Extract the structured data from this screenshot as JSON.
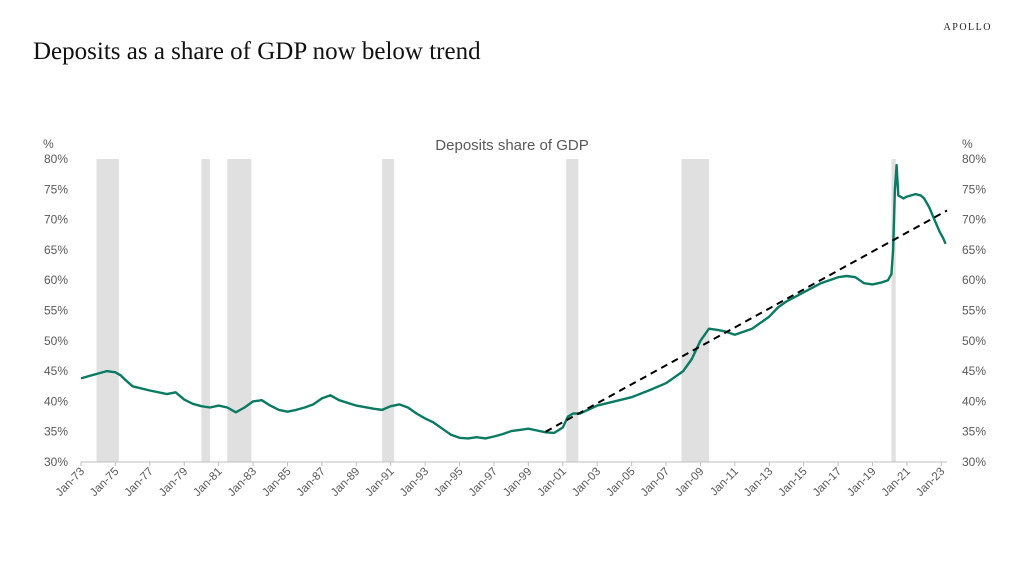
{
  "brand": "APOLLO",
  "page_title": "Deposits as a share of GDP now below trend",
  "chart_data": {
    "type": "line",
    "title": "Deposits share of GDP",
    "y_unit_left": "%",
    "y_unit_right": "%",
    "ylim": [
      30,
      80
    ],
    "y_ticks": [
      "30%",
      "35%",
      "40%",
      "45%",
      "50%",
      "55%",
      "60%",
      "65%",
      "70%",
      "75%",
      "80%"
    ],
    "y_tick_values": [
      30,
      35,
      40,
      45,
      50,
      55,
      60,
      65,
      70,
      75,
      80
    ],
    "xlim": [
      1973.0,
      2023.33
    ],
    "x_ticks": [
      "Jan-73",
      "Jan-75",
      "Jan-77",
      "Jan-79",
      "Jan-81",
      "Jan-83",
      "Jan-85",
      "Jan-87",
      "Jan-89",
      "Jan-91",
      "Jan-93",
      "Jan-95",
      "Jan-97",
      "Jan-99",
      "Jan-01",
      "Jan-03",
      "Jan-05",
      "Jan-07",
      "Jan-09",
      "Jan-11",
      "Jan-13",
      "Jan-15",
      "Jan-17",
      "Jan-19",
      "Jan-21",
      "Jan-23"
    ],
    "x_tick_values": [
      1973,
      1975,
      1977,
      1979,
      1981,
      1983,
      1985,
      1987,
      1989,
      1991,
      1993,
      1995,
      1997,
      1999,
      2001,
      2003,
      2005,
      2007,
      2009,
      2011,
      2013,
      2015,
      2017,
      2019,
      2021,
      2023
    ],
    "recessions": [
      [
        1973.9,
        1975.2
      ],
      [
        1980.0,
        1980.5
      ],
      [
        1981.5,
        1982.9
      ],
      [
        1990.5,
        1991.2
      ],
      [
        2001.2,
        2001.9
      ],
      [
        2007.9,
        2009.5
      ],
      [
        2020.1,
        2020.35
      ]
    ],
    "series": [
      {
        "color": "#0a7a63",
        "x": [
          1973.0,
          1973.5,
          1974.0,
          1974.5,
          1975.0,
          1975.3,
          1975.6,
          1976.0,
          1977.0,
          1978.0,
          1978.5,
          1979.0,
          1979.5,
          1980.0,
          1980.5,
          1981.0,
          1981.5,
          1982.0,
          1982.5,
          1983.0,
          1983.5,
          1984.0,
          1984.5,
          1985.0,
          1985.5,
          1986.0,
          1986.5,
          1987.0,
          1987.5,
          1988.0,
          1989.0,
          1990.0,
          1990.5,
          1991.0,
          1991.5,
          1992.0,
          1992.5,
          1993.0,
          1993.5,
          1994.0,
          1994.5,
          1995.0,
          1995.5,
          1996.0,
          1996.5,
          1997.0,
          1997.5,
          1998.0,
          1998.5,
          1999.0,
          1999.5,
          2000.0,
          2000.5,
          2001.0,
          2001.3,
          2001.6,
          2002.0,
          2003.0,
          2004.0,
          2005.0,
          2006.0,
          2007.0,
          2007.5,
          2008.0,
          2008.5,
          2009.0,
          2009.5,
          2010.0,
          2010.5,
          2011.0,
          2012.0,
          2013.0,
          2013.5,
          2014.0,
          2015.0,
          2016.0,
          2017.0,
          2017.5,
          2018.0,
          2018.5,
          2019.0,
          2019.5,
          2019.9,
          2020.1,
          2020.2,
          2020.3,
          2020.4,
          2020.5,
          2020.8,
          2021.0,
          2021.5,
          2021.8,
          2022.0,
          2022.3,
          2022.6,
          2022.9,
          2023.1,
          2023.25
        ],
        "y": [
          43.8,
          44.2,
          44.6,
          45.0,
          44.8,
          44.3,
          43.5,
          42.5,
          41.8,
          41.2,
          41.5,
          40.3,
          39.6,
          39.2,
          39.0,
          39.3,
          39.0,
          38.2,
          39.0,
          40.0,
          40.2,
          39.3,
          38.6,
          38.3,
          38.6,
          39.0,
          39.5,
          40.5,
          41.0,
          40.2,
          39.3,
          38.8,
          38.6,
          39.2,
          39.5,
          39.0,
          38.0,
          37.2,
          36.5,
          35.5,
          34.5,
          34.0,
          33.9,
          34.1,
          33.9,
          34.2,
          34.6,
          35.1,
          35.3,
          35.5,
          35.2,
          34.9,
          34.8,
          35.7,
          37.5,
          38.0,
          38.0,
          39.3,
          40.0,
          40.7,
          41.8,
          43.0,
          44.0,
          45.0,
          47.0,
          50.0,
          52.0,
          51.8,
          51.5,
          51.0,
          52.0,
          54.0,
          55.5,
          56.5,
          58.0,
          59.5,
          60.5,
          60.7,
          60.5,
          59.5,
          59.3,
          59.6,
          60.0,
          61.0,
          65.0,
          75.0,
          79.0,
          74.0,
          73.5,
          73.8,
          74.2,
          74.0,
          73.5,
          72.0,
          70.0,
          68.0,
          67.0,
          66.0
        ]
      }
    ],
    "trend": {
      "style": "dashed",
      "color": "#000000",
      "x": [
        2000.0,
        2023.33
      ],
      "y": [
        35.0,
        71.5
      ]
    }
  }
}
